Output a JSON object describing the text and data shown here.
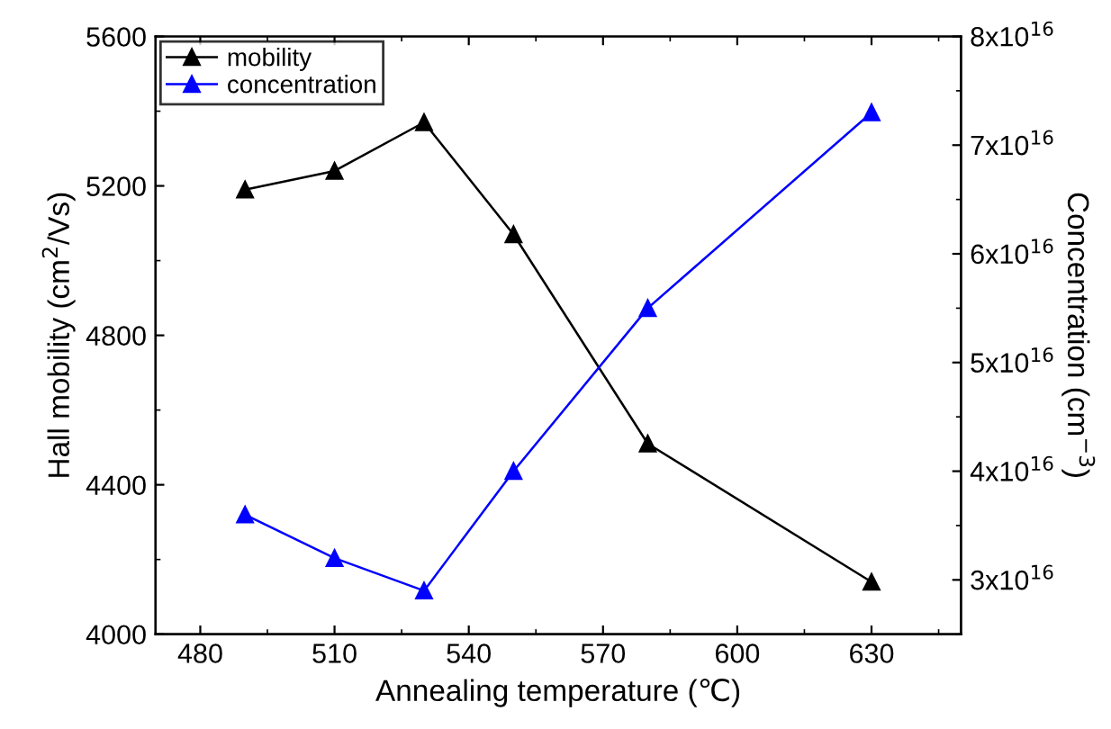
{
  "chart_data": {
    "type": "line",
    "xlabel": "Annealing temperature (℃)",
    "ylabel": "Hall mobility (cm$^{2}$/Vs)",
    "y2label": "Concentration (cm$^{−3}$)",
    "x": [
      490,
      510,
      530,
      550,
      580,
      630
    ],
    "series": [
      {
        "name": "mobility",
        "color": "#000000",
        "values": [
          5190,
          5240,
          5370,
          5070,
          4510,
          4140
        ]
      },
      {
        "name": "concentration",
        "color": "#0000ff",
        "axis": "y2",
        "values": [
          3.6e+16,
          3.2e+16,
          2.9e+16,
          4e+16,
          5.5e+16,
          7.3e+16
        ]
      }
    ],
    "xlim": [
      470,
      650
    ],
    "xticks": [
      480,
      510,
      540,
      570,
      600,
      630
    ],
    "ylim": [
      4000,
      5600
    ],
    "yticks": [
      4000,
      4400,
      4800,
      5200,
      5600
    ],
    "y2lim": [
      2.5e+16,
      8e+16
    ],
    "y2ticks": [
      {
        "value": 3e+16,
        "label": "3x10$^{16}$"
      },
      {
        "value": 4e+16,
        "label": "4x10$^{16}$"
      },
      {
        "value": 5e+16,
        "label": "5x10$^{16}$"
      },
      {
        "value": 6e+16,
        "label": "6x10$^{16}$"
      },
      {
        "value": 7e+16,
        "label": "7x10$^{16}$"
      },
      {
        "value": 8e+16,
        "label": "8x10$^{16}$"
      }
    ],
    "marker": "triangle",
    "line_style": "solid",
    "legend": "top left",
    "grid": false
  }
}
